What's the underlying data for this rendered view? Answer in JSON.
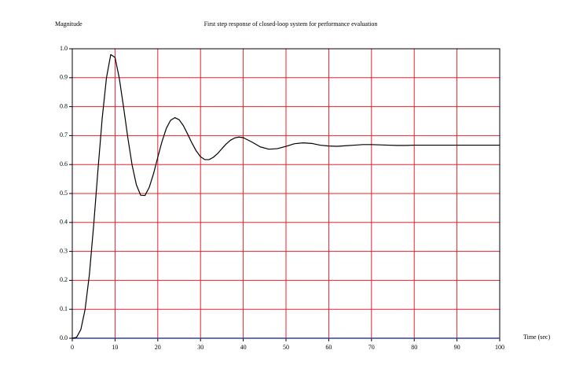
{
  "chart_data": {
    "type": "line",
    "title": "First step response of closed-loop system for performance evaluation",
    "y_label": "Magnitude",
    "x_label": "Time (sec)",
    "color": "#000000",
    "grid": true,
    "grid_color": "#e8202a",
    "xlim": [
      0,
      100
    ],
    "ylim": [
      0,
      1
    ],
    "xticks": [
      0,
      10,
      20,
      30,
      40,
      50,
      60,
      70,
      80,
      90,
      100
    ],
    "yticks": [
      {
        "value": 0,
        "label": "0.0"
      },
      0.1,
      0.2,
      0.3,
      0.4,
      0.5,
      0.6,
      0.7,
      0.8,
      0.9,
      {
        "value": 1,
        "label": "1.0"
      }
    ],
    "x": [
      0,
      1,
      2,
      3,
      4,
      5,
      6,
      7,
      8,
      9,
      10,
      11,
      12,
      13,
      14,
      15,
      16,
      17,
      18,
      19,
      20,
      21,
      22,
      23,
      24,
      25,
      26,
      27,
      28,
      29,
      30,
      31,
      32,
      33,
      34,
      35,
      36,
      37,
      38,
      39,
      40,
      42,
      44,
      46,
      48,
      50,
      52,
      54,
      56,
      58,
      60,
      62,
      64,
      66,
      68,
      70,
      72,
      74,
      76,
      78,
      80,
      85,
      90,
      95,
      100
    ],
    "values": [
      0,
      0.003,
      0.03,
      0.1,
      0.22,
      0.39,
      0.58,
      0.76,
      0.9,
      0.98,
      0.97,
      0.898,
      0.798,
      0.692,
      0.598,
      0.53,
      0.494,
      0.493,
      0.521,
      0.568,
      0.625,
      0.68,
      0.725,
      0.753,
      0.762,
      0.755,
      0.734,
      0.705,
      0.674,
      0.647,
      0.627,
      0.617,
      0.617,
      0.625,
      0.638,
      0.655,
      0.671,
      0.684,
      0.692,
      0.695,
      0.693,
      0.678,
      0.661,
      0.653,
      0.655,
      0.663,
      0.672,
      0.675,
      0.673,
      0.667,
      0.664,
      0.663,
      0.665,
      0.667,
      0.669,
      0.669,
      0.668,
      0.667,
      0.666,
      0.666,
      0.667,
      0.667,
      0.667,
      0.667,
      0.667
    ]
  }
}
